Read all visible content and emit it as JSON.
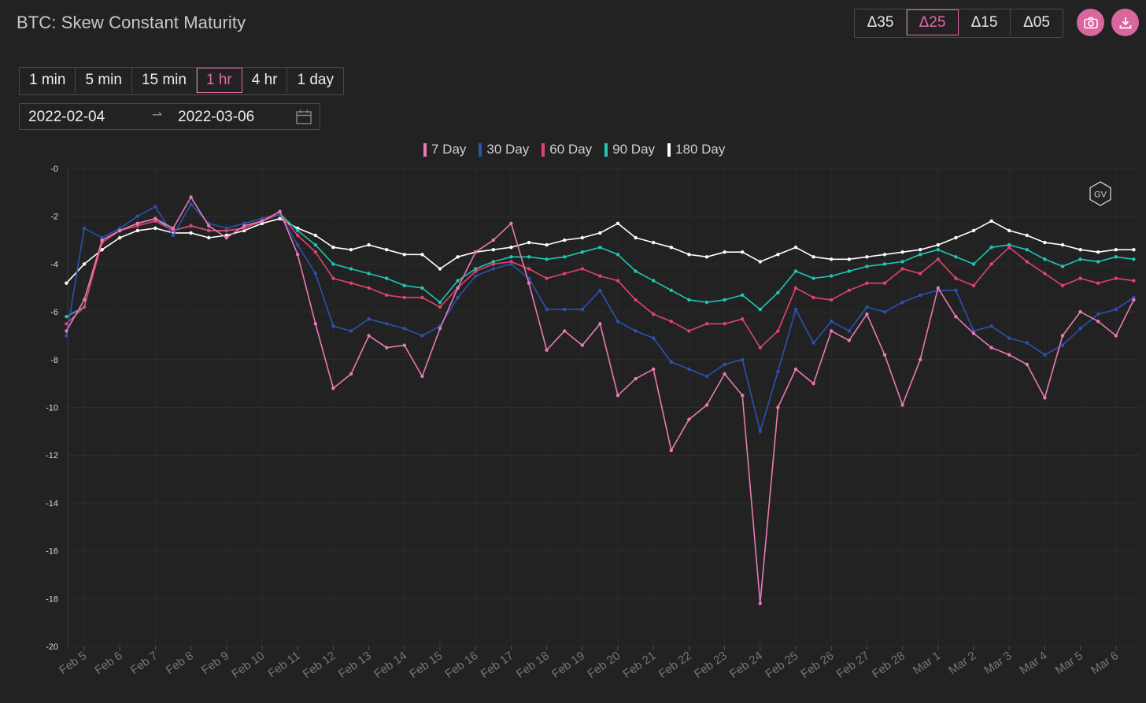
{
  "title": "BTC: Skew Constant Maturity",
  "delta_buttons": [
    {
      "label": "Δ35",
      "active": false
    },
    {
      "label": "Δ25",
      "active": true
    },
    {
      "label": "Δ15",
      "active": false
    },
    {
      "label": "Δ05",
      "active": false
    }
  ],
  "timeframes": [
    {
      "label": "1 min",
      "active": false
    },
    {
      "label": "5 min",
      "active": false
    },
    {
      "label": "15 min",
      "active": false
    },
    {
      "label": "1 hr",
      "active": true
    },
    {
      "label": "4 hr",
      "active": false
    },
    {
      "label": "1 day",
      "active": false
    }
  ],
  "date_range": {
    "start": "2022-02-04",
    "end": "2022-03-06"
  },
  "icons": {
    "camera": "camera-icon",
    "download": "download-icon",
    "calendar": "calendar-icon",
    "watermark": "gv-logo"
  },
  "watermark": "GV",
  "colors": {
    "accent": "#e06aa6",
    "background": "#222222"
  },
  "chart_data": {
    "type": "line",
    "title": "BTC: Skew Constant Maturity",
    "xlabel": "",
    "ylabel": "",
    "ylim": [
      -20,
      0
    ],
    "yticks": [
      "-0",
      "-2",
      "-4",
      "-6",
      "-8",
      "-10",
      "-12",
      "-14",
      "-16",
      "-18",
      "-20"
    ],
    "xticks": [
      "Feb 5",
      "Feb 6",
      "Feb 7",
      "Feb 8",
      "Feb 9",
      "Feb 10",
      "Feb 11",
      "Feb 12",
      "Feb 13",
      "Feb 14",
      "Feb 15",
      "Feb 16",
      "Feb 17",
      "Feb 18",
      "Feb 19",
      "Feb 20",
      "Feb 21",
      "Feb 22",
      "Feb 23",
      "Feb 24",
      "Feb 25",
      "Feb 26",
      "Feb 27",
      "Feb 28",
      "Mar 1",
      "Mar 2",
      "Mar 3",
      "Mar 4",
      "Mar 5",
      "Mar 6"
    ],
    "x": [
      "2022-02-04 12:00",
      "2022-02-05",
      "2022-02-05 12:00",
      "2022-02-06",
      "2022-02-06 12:00",
      "2022-02-07",
      "2022-02-07 12:00",
      "2022-02-08",
      "2022-02-08 12:00",
      "2022-02-09",
      "2022-02-09 12:00",
      "2022-02-10",
      "2022-02-10 12:00",
      "2022-02-11",
      "2022-02-11 12:00",
      "2022-02-12",
      "2022-02-12 12:00",
      "2022-02-13",
      "2022-02-13 12:00",
      "2022-02-14",
      "2022-02-14 12:00",
      "2022-02-15",
      "2022-02-15 12:00",
      "2022-02-16",
      "2022-02-16 12:00",
      "2022-02-17",
      "2022-02-17 12:00",
      "2022-02-18",
      "2022-02-18 12:00",
      "2022-02-19",
      "2022-02-19 12:00",
      "2022-02-20",
      "2022-02-20 12:00",
      "2022-02-21",
      "2022-02-21 12:00",
      "2022-02-22",
      "2022-02-22 12:00",
      "2022-02-23",
      "2022-02-23 12:00",
      "2022-02-24",
      "2022-02-24 12:00",
      "2022-02-25",
      "2022-02-25 12:00",
      "2022-02-26",
      "2022-02-26 12:00",
      "2022-02-27",
      "2022-02-27 12:00",
      "2022-02-28",
      "2022-02-28 12:00",
      "2022-03-01",
      "2022-03-01 12:00",
      "2022-03-02",
      "2022-03-02 12:00",
      "2022-03-03",
      "2022-03-03 12:00",
      "2022-03-04",
      "2022-03-04 12:00",
      "2022-03-05",
      "2022-03-05 12:00",
      "2022-03-06",
      "2022-03-06 12:00"
    ],
    "legend_position": "top-center",
    "grid": true,
    "series": [
      {
        "name": "7 Day",
        "color": "#e87ab4",
        "values": [
          -6.8,
          -5.5,
          -3.0,
          -2.6,
          -2.3,
          -2.1,
          -2.5,
          -1.2,
          -2.4,
          -2.9,
          -2.4,
          -2.2,
          -1.8,
          -3.6,
          -6.5,
          -9.2,
          -8.6,
          -7.0,
          -7.5,
          -7.4,
          -8.7,
          -6.7,
          -5.0,
          -3.5,
          -3.0,
          -2.3,
          -4.8,
          -7.6,
          -6.8,
          -7.4,
          -6.5,
          -9.5,
          -8.8,
          -8.4,
          -11.8,
          -10.5,
          -9.9,
          -8.6,
          -9.5,
          -18.2,
          -10.0,
          -8.4,
          -9.0,
          -6.8,
          -7.2,
          -6.1,
          -7.8,
          -9.9,
          -8.0,
          -5.0,
          -6.2,
          -6.9,
          -7.5,
          -7.8,
          -8.2,
          -9.6,
          -7.0,
          -6.0,
          -6.4,
          -7.0,
          -5.5
        ]
      },
      {
        "name": "30 Day",
        "color": "#2b52b0",
        "values": [
          -7.0,
          -2.5,
          -2.9,
          -2.5,
          -2.0,
          -1.6,
          -2.8,
          -1.5,
          -2.3,
          -2.5,
          -2.3,
          -2.1,
          -1.9,
          -3.2,
          -4.4,
          -6.6,
          -6.8,
          -6.3,
          -6.5,
          -6.7,
          -7.0,
          -6.6,
          -5.4,
          -4.5,
          -4.2,
          -4.0,
          -4.6,
          -5.9,
          -5.9,
          -5.9,
          -5.1,
          -6.4,
          -6.8,
          -7.1,
          -8.1,
          -8.4,
          -8.7,
          -8.2,
          -8.0,
          -11.0,
          -8.5,
          -5.9,
          -7.3,
          -6.4,
          -6.8,
          -5.8,
          -6.0,
          -5.6,
          -5.3,
          -5.1,
          -5.1,
          -6.8,
          -6.6,
          -7.1,
          -7.3,
          -7.8,
          -7.4,
          -6.7,
          -6.1,
          -5.9,
          -5.4
        ]
      },
      {
        "name": "60 Day",
        "color": "#e0436e",
        "values": [
          -6.5,
          -5.8,
          -3.1,
          -2.6,
          -2.4,
          -2.2,
          -2.6,
          -2.4,
          -2.6,
          -2.6,
          -2.5,
          -2.2,
          -1.9,
          -2.8,
          -3.5,
          -4.6,
          -4.8,
          -5.0,
          -5.3,
          -5.4,
          -5.4,
          -5.8,
          -5.0,
          -4.3,
          -4.0,
          -3.9,
          -4.2,
          -4.6,
          -4.4,
          -4.2,
          -4.5,
          -4.7,
          -5.5,
          -6.1,
          -6.4,
          -6.8,
          -6.5,
          -6.5,
          -6.3,
          -7.5,
          -6.8,
          -5.0,
          -5.4,
          -5.5,
          -5.1,
          -4.8,
          -4.8,
          -4.2,
          -4.4,
          -3.8,
          -4.6,
          -4.9,
          -4.0,
          -3.3,
          -3.9,
          -4.4,
          -4.9,
          -4.6,
          -4.8,
          -4.6,
          -4.7
        ]
      },
      {
        "name": "90 Day",
        "color": "#1fc6b4",
        "values": [
          -6.2,
          -5.8,
          -3.0,
          -2.6,
          -2.3,
          -2.1,
          -2.6,
          -2.4,
          -2.6,
          -2.6,
          -2.5,
          -2.2,
          -1.9,
          -2.6,
          -3.2,
          -4.0,
          -4.2,
          -4.4,
          -4.6,
          -4.9,
          -5.0,
          -5.6,
          -4.7,
          -4.2,
          -3.9,
          -3.7,
          -3.7,
          -3.8,
          -3.7,
          -3.5,
          -3.3,
          -3.6,
          -4.3,
          -4.7,
          -5.1,
          -5.5,
          -5.6,
          -5.5,
          -5.3,
          -5.9,
          -5.2,
          -4.3,
          -4.6,
          -4.5,
          -4.3,
          -4.1,
          -4.0,
          -3.9,
          -3.6,
          -3.4,
          -3.7,
          -4.0,
          -3.3,
          -3.2,
          -3.4,
          -3.8,
          -4.1,
          -3.8,
          -3.9,
          -3.7,
          -3.8
        ]
      },
      {
        "name": "180 Day",
        "color": "#ffffff",
        "values": [
          -4.8,
          -4.0,
          -3.4,
          -2.9,
          -2.6,
          -2.5,
          -2.7,
          -2.7,
          -2.9,
          -2.8,
          -2.6,
          -2.3,
          -2.1,
          -2.5,
          -2.8,
          -3.3,
          -3.4,
          -3.2,
          -3.4,
          -3.6,
          -3.6,
          -4.2,
          -3.7,
          -3.5,
          -3.4,
          -3.3,
          -3.1,
          -3.2,
          -3.0,
          -2.9,
          -2.7,
          -2.3,
          -2.9,
          -3.1,
          -3.3,
          -3.6,
          -3.7,
          -3.5,
          -3.5,
          -3.9,
          -3.6,
          -3.3,
          -3.7,
          -3.8,
          -3.8,
          -3.7,
          -3.6,
          -3.5,
          -3.4,
          -3.2,
          -2.9,
          -2.6,
          -2.2,
          -2.6,
          -2.8,
          -3.1,
          -3.2,
          -3.4,
          -3.5,
          -3.4,
          -3.4
        ]
      }
    ]
  }
}
